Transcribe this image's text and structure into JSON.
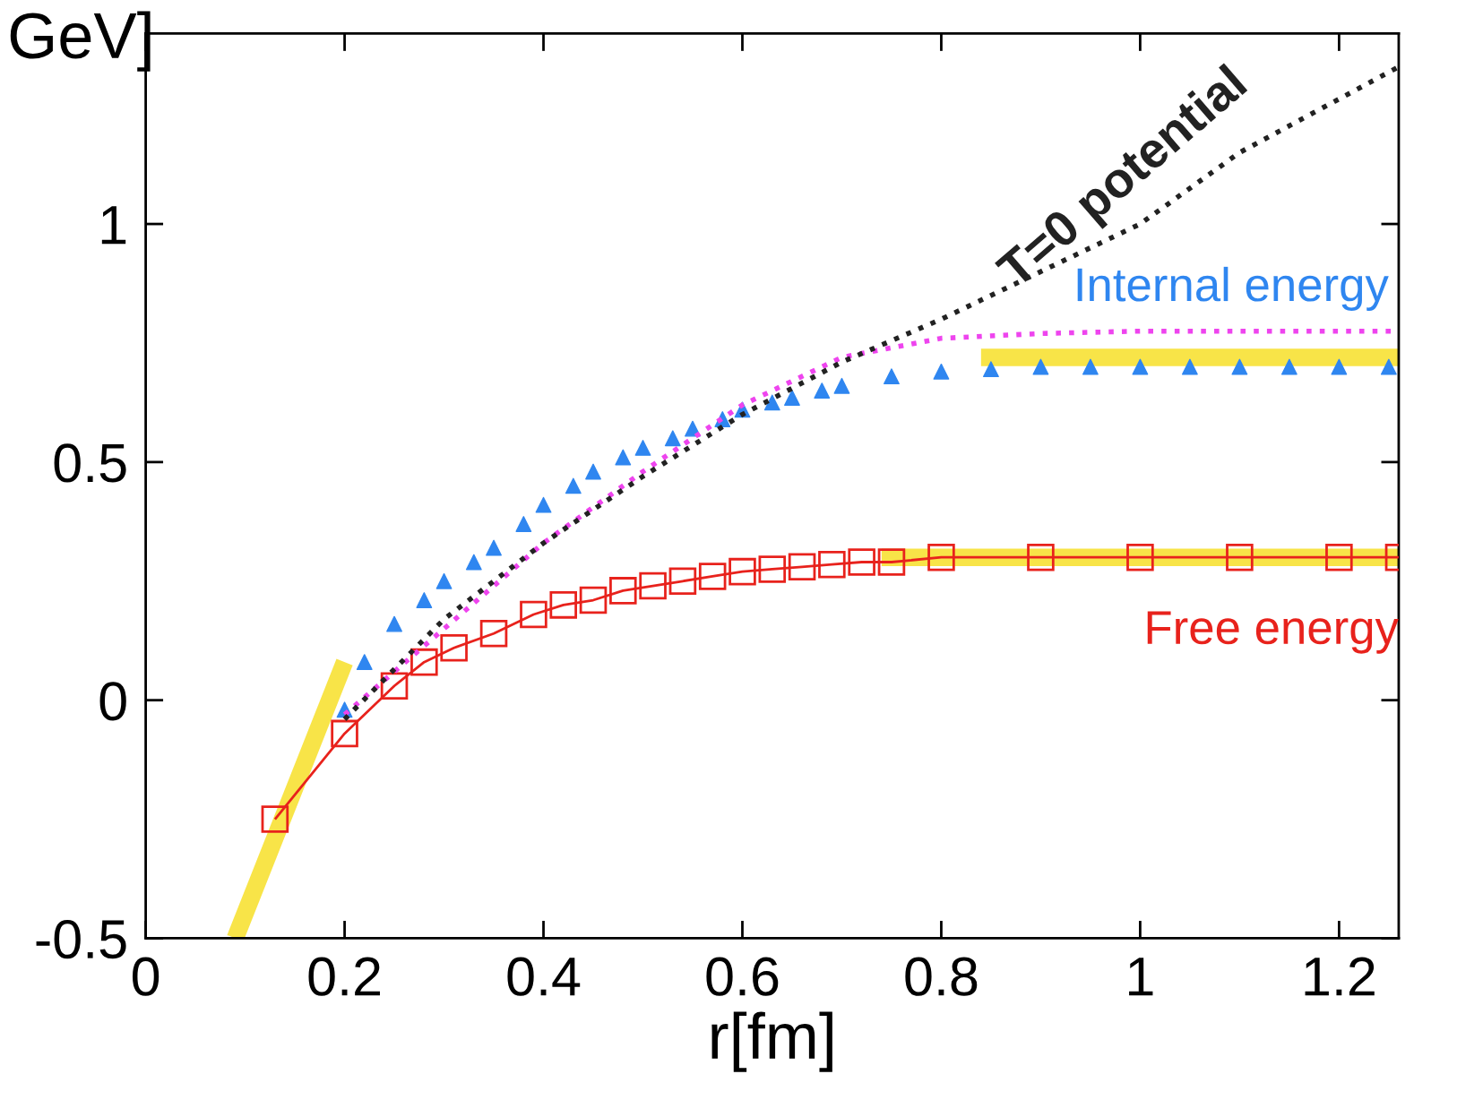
{
  "chart_data": {
    "type": "line",
    "xlabel": "r[fm]",
    "ylabel": "GeV]",
    "xlim": [
      0,
      1.26
    ],
    "ylim": [
      -0.5,
      1.4
    ],
    "xticks": [
      0,
      0.2,
      0.4,
      0.6,
      0.8,
      1,
      1.2
    ],
    "yticks": [
      -0.5,
      0,
      0.5,
      1
    ],
    "grid": false,
    "legend": false,
    "series": [
      {
        "name": "T=0 potential",
        "color": "#222222",
        "line_style": "dotted",
        "marker": "none",
        "x": [
          0.2,
          0.3,
          0.4,
          0.5,
          0.6,
          0.7,
          0.8,
          0.9,
          1.0,
          1.1,
          1.26
        ],
        "values": [
          -0.04,
          0.17,
          0.33,
          0.47,
          0.6,
          0.71,
          0.8,
          0.9,
          1.0,
          1.15,
          1.33
        ]
      },
      {
        "color": "#ee44ee",
        "line_style": "dotted",
        "marker": "none",
        "x": [
          0.2,
          0.3,
          0.4,
          0.5,
          0.6,
          0.7,
          0.8,
          0.9,
          1.0,
          1.26
        ],
        "values": [
          -0.03,
          0.15,
          0.33,
          0.48,
          0.62,
          0.72,
          0.76,
          0.77,
          0.775,
          0.775
        ]
      },
      {
        "name": "Internal energy",
        "type": "scatter",
        "color": "#2f86f0",
        "marker": "triangle",
        "x": [
          0.2,
          0.22,
          0.25,
          0.28,
          0.3,
          0.33,
          0.35,
          0.38,
          0.4,
          0.43,
          0.45,
          0.48,
          0.5,
          0.53,
          0.55,
          0.58,
          0.6,
          0.63,
          0.65,
          0.68,
          0.7,
          0.75,
          0.8,
          0.85,
          0.9,
          0.95,
          1.0,
          1.05,
          1.1,
          1.15,
          1.2,
          1.25
        ],
        "values": [
          -0.02,
          0.08,
          0.16,
          0.21,
          0.25,
          0.29,
          0.32,
          0.37,
          0.41,
          0.45,
          0.48,
          0.51,
          0.53,
          0.55,
          0.57,
          0.59,
          0.61,
          0.625,
          0.635,
          0.65,
          0.66,
          0.68,
          0.69,
          0.695,
          0.7,
          0.7,
          0.7,
          0.7,
          0.7,
          0.7,
          0.7,
          0.7
        ]
      },
      {
        "name": "Free energy",
        "color": "#e8221c",
        "line_style": "solid",
        "marker": "square",
        "x": [
          0.13,
          0.2,
          0.25,
          0.28,
          0.31,
          0.35,
          0.39,
          0.42,
          0.45,
          0.48,
          0.51,
          0.54,
          0.57,
          0.6,
          0.63,
          0.66,
          0.69,
          0.72,
          0.75,
          0.8,
          0.9,
          1.0,
          1.1,
          1.2,
          1.26
        ],
        "values": [
          -0.25,
          -0.07,
          0.03,
          0.08,
          0.11,
          0.14,
          0.18,
          0.2,
          0.21,
          0.23,
          0.24,
          0.25,
          0.26,
          0.27,
          0.275,
          0.28,
          0.285,
          0.29,
          0.29,
          0.3,
          0.3,
          0.3,
          0.3,
          0.3,
          0.3
        ]
      },
      {
        "type": "line",
        "color": "#f8e448",
        "line_style": "solid",
        "marker": "none",
        "x": [
          0.09,
          0.2
        ],
        "values": [
          -0.5,
          0.08
        ]
      },
      {
        "type": "line",
        "color": "#f8e448",
        "line_style": "solid",
        "marker": "none",
        "x": [
          0.84,
          1.26
        ],
        "values": [
          0.72,
          0.72
        ]
      },
      {
        "type": "line",
        "color": "#f8e448",
        "line_style": "solid",
        "marker": "none",
        "x": [
          0.74,
          1.26
        ],
        "values": [
          0.3,
          0.3
        ]
      }
    ]
  }
}
